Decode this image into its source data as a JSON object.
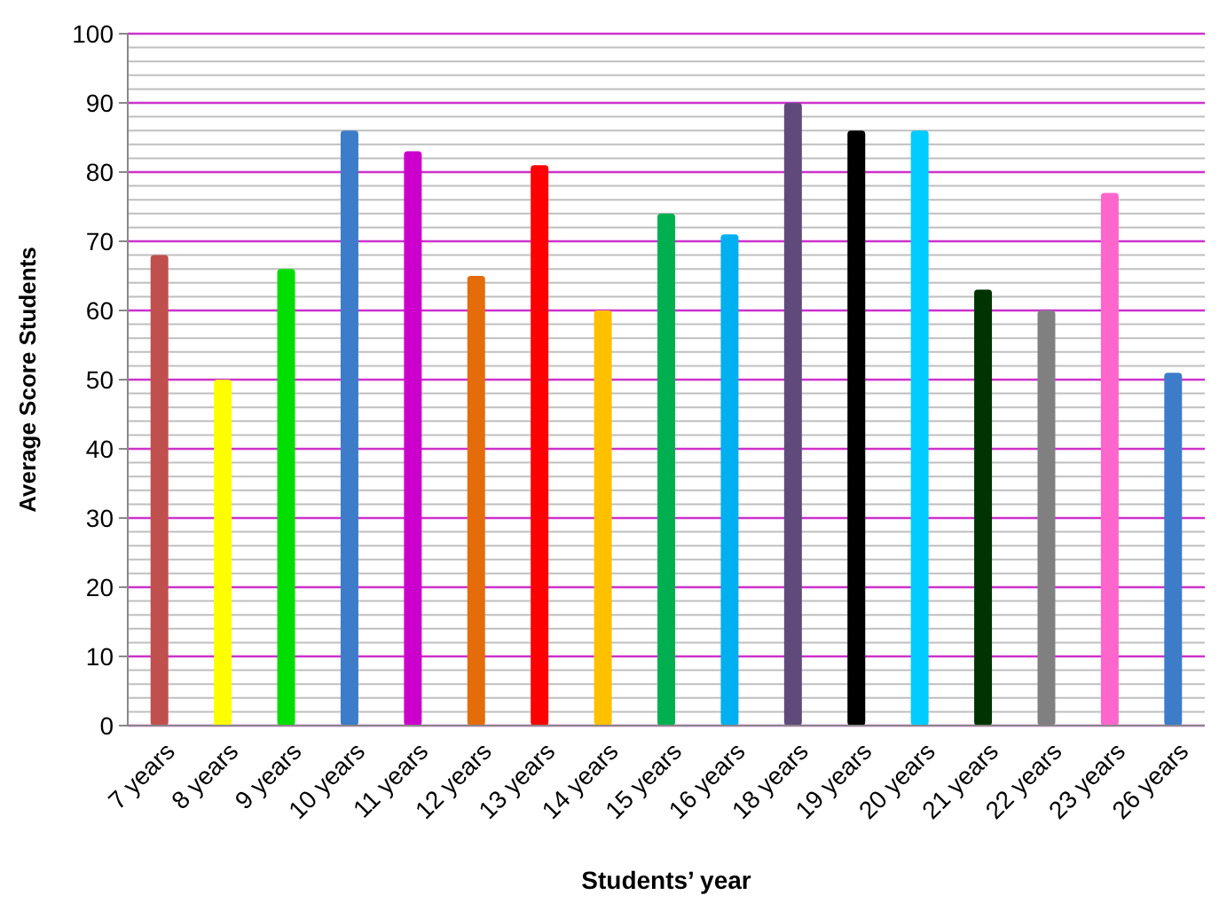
{
  "chart_data": {
    "type": "bar",
    "xlabel": "Students’ year",
    "ylabel": "Average Score Students",
    "categories": [
      "7 years",
      "8 years",
      "9 years",
      "10 years",
      "11 years",
      "12 years",
      "13 years",
      "14 years",
      "15 years",
      "16 years",
      "18 years",
      "19 years",
      "20 years",
      "21 years",
      "22 years",
      "23 years",
      "26 years"
    ],
    "values": [
      68,
      50,
      66,
      86,
      83,
      65,
      81,
      60,
      74,
      71,
      90,
      86,
      86,
      63,
      60,
      77,
      51
    ],
    "colors": [
      "#c0504d",
      "#ffff00",
      "#00dd00",
      "#3d7cc9",
      "#cc00cc",
      "#e46c0a",
      "#ff0000",
      "#ffc000",
      "#00b050",
      "#00b0f0",
      "#604a7b",
      "#000000",
      "#00ccff",
      "#003300",
      "#808080",
      "#ff66cc",
      "#3d7cc9"
    ],
    "ylim": [
      0,
      100
    ],
    "yticks": [
      0,
      {
        "value": 2,
        "label": null
      },
      {
        "value": 4,
        "label": null
      },
      {
        "value": 6,
        "label": null
      },
      {
        "value": 8,
        "label": null
      },
      10,
      {
        "value": 12,
        "label": null
      },
      {
        "value": 14,
        "label": null
      },
      {
        "value": 16,
        "label": null
      },
      {
        "value": 18,
        "label": null
      },
      20,
      {
        "value": 22,
        "label": null
      },
      {
        "value": 24,
        "label": null
      },
      {
        "value": 26,
        "label": null
      },
      {
        "value": 28,
        "label": null
      },
      30,
      {
        "value": 32,
        "label": null
      },
      {
        "value": 34,
        "label": null
      },
      {
        "value": 36,
        "label": null
      },
      {
        "value": 38,
        "label": null
      },
      40,
      {
        "value": 42,
        "label": null
      },
      {
        "value": 44,
        "label": null
      },
      {
        "value": 46,
        "label": null
      },
      {
        "value": 48,
        "label": null
      },
      50,
      {
        "value": 52,
        "label": null
      },
      {
        "value": 54,
        "label": null
      },
      {
        "value": 56,
        "label": null
      },
      {
        "value": 58,
        "label": null
      },
      60,
      {
        "value": 62,
        "label": null
      },
      {
        "value": 64,
        "label": null
      },
      {
        "value": 66,
        "label": null
      },
      {
        "value": 68,
        "label": null
      },
      70,
      {
        "value": 72,
        "label": null
      },
      {
        "value": 74,
        "label": null
      },
      {
        "value": 76,
        "label": null
      },
      {
        "value": 78,
        "label": null
      },
      80,
      {
        "value": 82,
        "label": null
      },
      {
        "value": 84,
        "label": null
      },
      {
        "value": 86,
        "label": null
      },
      {
        "value": 88,
        "label": null
      },
      90,
      {
        "value": 92,
        "label": null
      },
      {
        "value": 94,
        "label": null
      },
      {
        "value": 96,
        "label": null
      },
      {
        "value": 98,
        "label": null
      },
      100
    ],
    "grid": true
  }
}
